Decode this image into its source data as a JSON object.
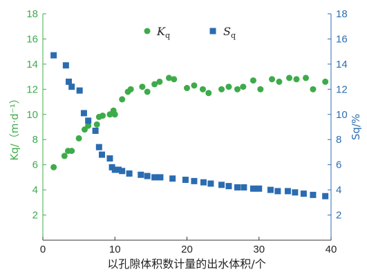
{
  "chart_data": {
    "type": "scatter",
    "xlabel": "以孔隙体积数计量的出水体积/个",
    "ylabel_left": "Kq/（m·d⁻¹）",
    "ylabel_right": "Sq/%",
    "xlim": [
      0,
      40
    ],
    "ylim_left": [
      0,
      18
    ],
    "ylim_right": [
      0,
      18
    ],
    "x_ticks": [
      "0",
      "10",
      "20",
      "30",
      "40"
    ],
    "y_ticks_left": [
      "2",
      "4",
      "6",
      "8",
      "10",
      "12",
      "14",
      "16",
      "18"
    ],
    "y_ticks_right": [
      "2",
      "4",
      "6",
      "8",
      "10",
      "12",
      "14",
      "16",
      "18"
    ],
    "legend_position": "top-center",
    "series": [
      {
        "name": "Kq",
        "color": "#3dab4a",
        "axis": "left",
        "marker": "circle",
        "points": [
          [
            1.5,
            5.8
          ],
          [
            3.0,
            6.7
          ],
          [
            3.5,
            7.1
          ],
          [
            4.0,
            7.1
          ],
          [
            5.0,
            8.1
          ],
          [
            5.8,
            8.8
          ],
          [
            6.3,
            9.1
          ],
          [
            7.5,
            9.2
          ],
          [
            7.8,
            9.8
          ],
          [
            8.3,
            9.9
          ],
          [
            9.3,
            10.0
          ],
          [
            9.8,
            10.3
          ],
          [
            10.0,
            10.0
          ],
          [
            11.0,
            11.2
          ],
          [
            11.8,
            11.8
          ],
          [
            12.2,
            12.0
          ],
          [
            13.8,
            12.2
          ],
          [
            14.5,
            11.8
          ],
          [
            15.5,
            12.4
          ],
          [
            16.2,
            12.6
          ],
          [
            17.5,
            12.9
          ],
          [
            18.2,
            12.8
          ],
          [
            20.0,
            12.1
          ],
          [
            21.0,
            12.3
          ],
          [
            22.2,
            12.0
          ],
          [
            23.0,
            11.7
          ],
          [
            24.8,
            12.0
          ],
          [
            25.8,
            12.2
          ],
          [
            27.0,
            12.0
          ],
          [
            27.8,
            12.2
          ],
          [
            29.2,
            12.7
          ],
          [
            30.2,
            12.0
          ],
          [
            31.8,
            12.8
          ],
          [
            32.8,
            12.6
          ],
          [
            34.2,
            12.9
          ],
          [
            35.2,
            12.8
          ],
          [
            36.5,
            12.9
          ],
          [
            37.5,
            12.0
          ],
          [
            39.2,
            12.6
          ]
        ]
      },
      {
        "name": "Sq",
        "color": "#2b6cb0",
        "axis": "right",
        "marker": "square",
        "points": [
          [
            1.5,
            14.7
          ],
          [
            3.2,
            13.9
          ],
          [
            3.6,
            12.6
          ],
          [
            4.0,
            12.2
          ],
          [
            5.1,
            11.9
          ],
          [
            5.7,
            10.1
          ],
          [
            6.3,
            9.5
          ],
          [
            7.3,
            8.7
          ],
          [
            7.8,
            7.4
          ],
          [
            8.2,
            6.8
          ],
          [
            9.3,
            6.5
          ],
          [
            9.6,
            5.8
          ],
          [
            10.0,
            5.6
          ],
          [
            10.5,
            5.6
          ],
          [
            11.0,
            5.5
          ],
          [
            12.0,
            5.3
          ],
          [
            13.6,
            5.2
          ],
          [
            14.5,
            5.1
          ],
          [
            15.5,
            5.0
          ],
          [
            16.3,
            5.0
          ],
          [
            18.0,
            4.9
          ],
          [
            19.8,
            4.8
          ],
          [
            21.0,
            4.7
          ],
          [
            22.3,
            4.6
          ],
          [
            23.3,
            4.5
          ],
          [
            24.8,
            4.4
          ],
          [
            25.8,
            4.3
          ],
          [
            27.0,
            4.2
          ],
          [
            27.9,
            4.2
          ],
          [
            29.2,
            4.1
          ],
          [
            30.0,
            4.1
          ],
          [
            31.6,
            4.0
          ],
          [
            32.6,
            3.9
          ],
          [
            34.0,
            3.9
          ],
          [
            35.0,
            3.8
          ],
          [
            36.2,
            3.7
          ],
          [
            37.5,
            3.6
          ],
          [
            39.2,
            3.5
          ]
        ]
      }
    ]
  },
  "legend": {
    "k_main": "K",
    "k_sub": "q",
    "s_main": "S",
    "s_sub": "q"
  }
}
